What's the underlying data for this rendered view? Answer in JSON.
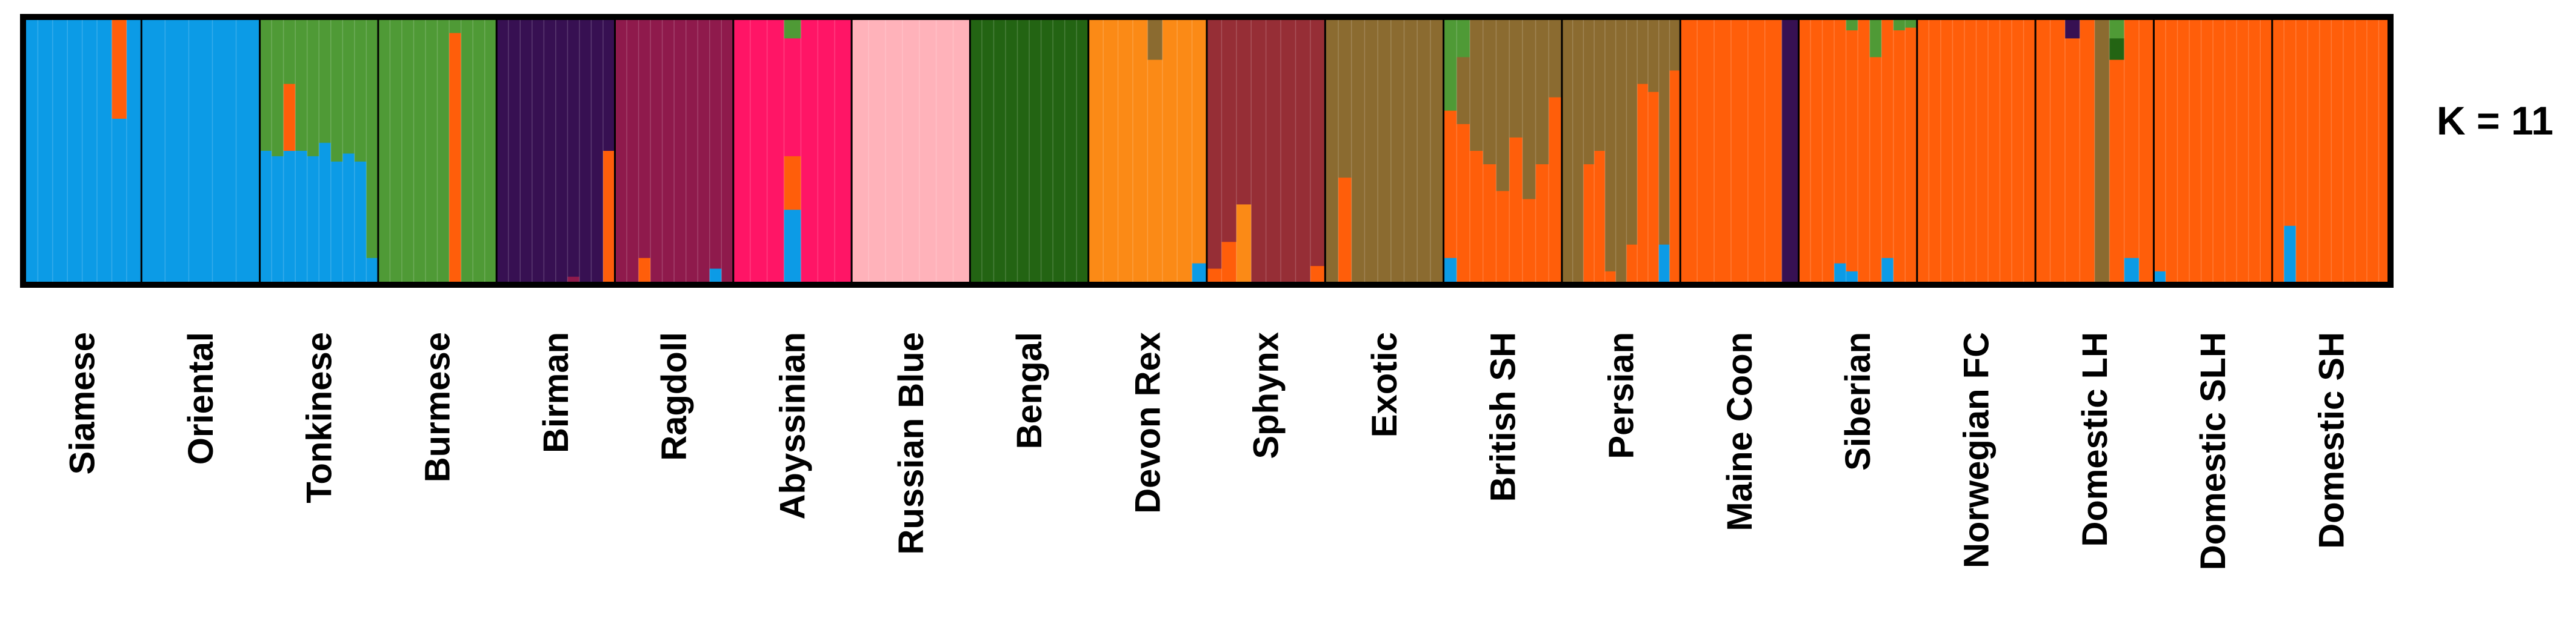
{
  "chart_data": {
    "type": "bar",
    "subtype": "stacked-ancestry (STRUCTURE-style) plot",
    "title": "K = 11",
    "ylim": [
      0,
      1
    ],
    "cluster_colors": {
      "blue": "#0C9BE6",
      "lightgreen": "#4F9A36",
      "purple": "#371052",
      "maroon": "#8F1A4C",
      "pink": "#FF1566",
      "lightpink": "#FFB2BA",
      "darkgreen": "#236413",
      "yellow": "#FB8A16",
      "rust": "#962E36",
      "brown": "#8B6B30",
      "orange": "#FF5E0A"
    },
    "categories": [
      "Siamese",
      "Oriental",
      "Tonkinese",
      "Burmese",
      "Birman",
      "Ragdoll",
      "Abyssinian",
      "Russian Blue",
      "Bengal",
      "Devon Rex",
      "Sphynx",
      "Exotic",
      "British SH",
      "Persian",
      "Maine Coon",
      "Siberian",
      "Norwegian FC",
      "Domestic LH",
      "Domestic SLH",
      "Domestic SH"
    ],
    "groups": [
      {
        "name": "Siamese",
        "individuals": [
          {
            "blue": 1
          },
          {
            "blue": 1
          },
          {
            "blue": 1
          },
          {
            "blue": 1
          },
          {
            "blue": 1
          },
          {
            "blue": 1
          },
          {
            "blue": 0.62,
            "orange": 0.38
          },
          {
            "blue": 1
          }
        ]
      },
      {
        "name": "Oriental",
        "individuals": [
          {
            "blue": 1
          },
          {
            "blue": 1
          },
          {
            "blue": 1
          },
          {
            "blue": 1
          },
          {
            "blue": 1
          }
        ]
      },
      {
        "name": "Tonkinese",
        "individuals": [
          {
            "blue": 0.5,
            "lightgreen": 0.5
          },
          {
            "blue": 0.48,
            "lightgreen": 0.52
          },
          {
            "blue": 0.5,
            "lightgreen": 0.25,
            "orange": 0.25
          },
          {
            "blue": 0.5,
            "lightgreen": 0.5
          },
          {
            "blue": 0.48,
            "lightgreen": 0.52
          },
          {
            "blue": 0.53,
            "lightgreen": 0.47
          },
          {
            "blue": 0.46,
            "lightgreen": 0.54
          },
          {
            "blue": 0.49,
            "lightgreen": 0.51
          },
          {
            "blue": 0.46,
            "lightgreen": 0.54
          },
          {
            "blue": 0.1,
            "lightgreen": 0.9
          }
        ]
      },
      {
        "name": "Burmese",
        "individuals": [
          {
            "lightgreen": 1
          },
          {
            "lightgreen": 1
          },
          {
            "lightgreen": 1
          },
          {
            "lightgreen": 1
          },
          {
            "lightgreen": 1
          },
          {
            "lightgreen": 1
          },
          {
            "lightgreen": 0.06,
            "orange": 0.94
          },
          {
            "lightgreen": 1
          },
          {
            "lightgreen": 1
          },
          {
            "lightgreen": 1
          }
        ]
      },
      {
        "name": "Birman",
        "individuals": [
          {
            "purple": 1
          },
          {
            "purple": 1
          },
          {
            "purple": 1
          },
          {
            "purple": 1
          },
          {
            "purple": 1
          },
          {
            "purple": 1
          },
          {
            "purple": 0.97,
            "maroon": 0.03
          },
          {
            "purple": 1
          },
          {
            "purple": 1
          },
          {
            "purple": 0.5,
            "orange": 0.5
          }
        ]
      },
      {
        "name": "Ragdoll",
        "individuals": [
          {
            "maroon": 1
          },
          {
            "maroon": 1
          },
          {
            "maroon": 0.9,
            "orange": 0.1
          },
          {
            "maroon": 1
          },
          {
            "maroon": 1
          },
          {
            "maroon": 1
          },
          {
            "maroon": 1
          },
          {
            "maroon": 1
          },
          {
            "maroon": 0.94,
            "blue": 0.06
          },
          {
            "maroon": 1
          }
        ]
      },
      {
        "name": "Abyssinian",
        "individuals": [
          {
            "pink": 1
          },
          {
            "pink": 1
          },
          {
            "pink": 1
          },
          {
            "lightgreen": 0.08,
            "pink": 0.44,
            "orange": 0.2,
            "blue": 0.28
          },
          {
            "pink": 1
          },
          {
            "pink": 1
          },
          {
            "pink": 1
          }
        ]
      },
      {
        "name": "Russian Blue",
        "individuals": [
          {
            "lightpink": 1
          },
          {
            "lightpink": 1
          },
          {
            "lightpink": 1
          },
          {
            "lightpink": 1
          },
          {
            "lightpink": 1
          },
          {
            "lightpink": 1
          },
          {
            "lightpink": 1
          }
        ]
      },
      {
        "name": "Bengal",
        "individuals": [
          {
            "darkgreen": 1
          },
          {
            "darkgreen": 1
          },
          {
            "darkgreen": 1
          },
          {
            "darkgreen": 1
          },
          {
            "darkgreen": 1
          },
          {
            "darkgreen": 1
          },
          {
            "darkgreen": 1
          },
          {
            "darkgreen": 1
          },
          {
            "darkgreen": 1
          },
          {
            "darkgreen": 1
          }
        ]
      },
      {
        "name": "Devon Rex",
        "individuals": [
          {
            "yellow": 1
          },
          {
            "yellow": 1
          },
          {
            "yellow": 1
          },
          {
            "yellow": 1
          },
          {
            "brown": 0.16,
            "yellow": 0.84
          },
          {
            "yellow": 1
          },
          {
            "yellow": 1
          },
          {
            "yellow": 0.92,
            "blue": 0.08
          }
        ]
      },
      {
        "name": "Sphynx",
        "individuals": [
          {
            "rust": 0.94,
            "orange": 0.06
          },
          {
            "rust": 0.84,
            "orange": 0.16
          },
          {
            "rust": 0.7,
            "yellow": 0.3
          },
          {
            "rust": 1
          },
          {
            "rust": 1
          },
          {
            "rust": 1
          },
          {
            "rust": 1
          },
          {
            "rust": 0.93,
            "orange": 0.07
          }
        ]
      },
      {
        "name": "Exotic",
        "individuals": [
          {
            "brown": 1
          },
          {
            "brown": 0.6,
            "orange": 0.4
          },
          {
            "brown": 1
          },
          {
            "brown": 1
          },
          {
            "brown": 1
          },
          {
            "brown": 1
          },
          {
            "brown": 1
          },
          {
            "brown": 1
          },
          {
            "brown": 1
          }
        ]
      },
      {
        "name": "British SH",
        "individuals": [
          {
            "lightgreen": 0.35,
            "orange": 0.55,
            "blue": 0.1
          },
          {
            "lightgreen": 0.15,
            "brown": 0.25,
            "orange": 0.6
          },
          {
            "brown": 0.5,
            "orange": 0.5
          },
          {
            "brown": 0.55,
            "orange": 0.45
          },
          {
            "brown": 0.65,
            "orange": 0.35
          },
          {
            "brown": 0.45,
            "orange": 0.55
          },
          {
            "brown": 0.68,
            "orange": 0.32
          },
          {
            "brown": 0.55,
            "orange": 0.45
          },
          {
            "brown": 0.3,
            "orange": 0.7
          }
        ]
      },
      {
        "name": "Persian",
        "individuals": [
          {
            "brown": 1
          },
          {
            "brown": 1
          },
          {
            "brown": 0.55,
            "orange": 0.45
          },
          {
            "brown": 0.5,
            "orange": 0.5
          },
          {
            "brown": 0.95,
            "orange": 0.05
          },
          {
            "brown": 1
          },
          {
            "brown": 0.85,
            "orange": 0.15
          },
          {
            "brown": 0.25,
            "orange": 0.75
          },
          {
            "brown": 0.28,
            "orange": 0.72
          },
          {
            "brown": 0.85,
            "blue": 0.15
          },
          {
            "brown": 0.2,
            "orange": 0.8
          }
        ]
      },
      {
        "name": "Maine Coon",
        "individuals": [
          {
            "orange": 1
          },
          {
            "orange": 1
          },
          {
            "orange": 1
          },
          {
            "orange": 1
          },
          {
            "orange": 1
          },
          {
            "orange": 1
          },
          {
            "purple": 1
          }
        ]
      },
      {
        "name": "Siberian",
        "individuals": [
          {
            "orange": 1
          },
          {
            "orange": 1
          },
          {
            "orange": 1
          },
          {
            "orange": 0.92,
            "blue": 0.08
          },
          {
            "lightgreen": 0.05,
            "orange": 0.9,
            "blue": 0.05
          },
          {
            "orange": 1
          },
          {
            "lightgreen": 0.15,
            "orange": 0.85
          },
          {
            "orange": 0.9,
            "blue": 0.1
          },
          {
            "lightgreen": 0.05,
            "orange": 0.95
          },
          {
            "lightgreen": 0.04,
            "orange": 0.96
          }
        ]
      },
      {
        "name": "Norwegian FC",
        "individuals": [
          {
            "orange": 1
          },
          {
            "orange": 1
          },
          {
            "orange": 1
          },
          {
            "orange": 1
          },
          {
            "orange": 1
          },
          {
            "orange": 1
          },
          {
            "orange": 1
          },
          {
            "orange": 1
          },
          {
            "orange": 1
          },
          {
            "orange": 1
          }
        ]
      },
      {
        "name": "Domestic LH",
        "individuals": [
          {
            "orange": 1
          },
          {
            "orange": 1
          },
          {
            "purple": 0.08,
            "orange": 0.92
          },
          {
            "orange": 1
          },
          {
            "brown": 1
          },
          {
            "lightgreen": 0.08,
            "darkgreen": 0.08,
            "orange": 0.84
          },
          {
            "orange": 0.9,
            "blue": 0.1
          },
          {
            "orange": 1
          }
        ]
      },
      {
        "name": "Domestic SLH",
        "individuals": [
          {
            "orange": 0.95,
            "blue": 0.05
          },
          {
            "orange": 1
          },
          {
            "orange": 1
          },
          {
            "orange": 1
          },
          {
            "orange": 1
          },
          {
            "orange": 1
          },
          {
            "orange": 1
          },
          {
            "orange": 1
          },
          {
            "orange": 1
          },
          {
            "orange": 1
          }
        ]
      },
      {
        "name": "Domestic SH",
        "individuals": [
          {
            "orange": 1
          },
          {
            "orange": 0.78,
            "blue": 0.22
          },
          {
            "orange": 1
          },
          {
            "orange": 1
          },
          {
            "orange": 1
          },
          {
            "orange": 1
          },
          {
            "orange": 1
          },
          {
            "orange": 1
          },
          {
            "orange": 1
          },
          {
            "orange": 1
          }
        ]
      }
    ]
  }
}
